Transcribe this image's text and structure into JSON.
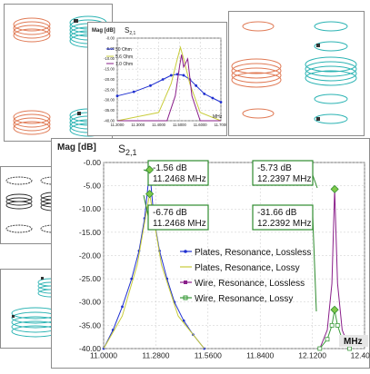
{
  "colors": {
    "coil_orange": "#e07a55",
    "coil_cyan": "#2ab3b3",
    "coil_black": "#2a2a2a",
    "series_blue": "#1f2fd0",
    "series_yellow": "#c8cc3a",
    "series_purple": "#8a1f8a",
    "series_green": "#3a9a3a",
    "callout_box": "#2e8b2e",
    "callout_marker": "#7fc94a",
    "grid": "#c8c8c8"
  },
  "large_plot": {
    "ylabel": "Mag [dB]",
    "title_main": "S",
    "title_sub": "2,1",
    "xunit": "MHz",
    "callouts": [
      {
        "line1": "-1.56 dB",
        "line2": "11.2468 MHz"
      },
      {
        "line1": "-5.73 dB",
        "line2": "12.2397 MHz"
      },
      {
        "line1": "-6.76 dB",
        "line2": "11.2468 MHz"
      },
      {
        "line1": "-31.66 dB",
        "line2": "12.2392 MHz"
      }
    ],
    "legend": [
      "Plates, Resonance, Lossless",
      "Plates, Resonance, Lossy",
      "Wire, Resonance, Lossless",
      "Wire, Resonance, Lossy"
    ]
  },
  "small_plot": {
    "ylabel": "Mag [dB]",
    "title_main": "S",
    "title_sub": "2,1",
    "xunit": "MHz",
    "legend": [
      "50 Ohm",
      "5.6 Ohm",
      "1.0 Ohm"
    ]
  },
  "chart_data": [
    {
      "type": "line",
      "xlim": [
        11.0,
        12.4
      ],
      "ylim": [
        -40,
        0
      ],
      "x_ticks": [
        "11.0000",
        "11.2800",
        "11.5600",
        "11.8400",
        "12.1200",
        "12.4000"
      ],
      "y_ticks": [
        "-0.00",
        "-5.00",
        "-10.00",
        "-15.00",
        "-20.00",
        "-25.00",
        "-30.00",
        "-35.00",
        "-40.00"
      ],
      "series": [
        {
          "name": "Plates, Resonance, Lossless",
          "color": "#1f2fd0",
          "marker": "dot",
          "x": [
            11.0,
            11.05,
            11.1,
            11.15,
            11.19,
            11.22,
            11.2468,
            11.27,
            11.3,
            11.34,
            11.38,
            11.43,
            11.48,
            11.54
          ],
          "y": [
            -40,
            -36,
            -31,
            -25,
            -19,
            -12,
            -1.56,
            -12,
            -19,
            -25,
            -30,
            -34,
            -37,
            -40
          ]
        },
        {
          "name": "Plates, Resonance, Lossy",
          "color": "#c8cc3a",
          "marker": "none",
          "x": [
            11.0,
            11.1,
            11.18,
            11.2468,
            11.31,
            11.4,
            11.54
          ],
          "y": [
            -40,
            -33,
            -22,
            -6.76,
            -22,
            -33,
            -40
          ]
        },
        {
          "name": "Wire, Resonance, Lossless",
          "color": "#8a1f8a",
          "marker": "none",
          "x": [
            12.16,
            12.2,
            12.225,
            12.2397,
            12.255,
            12.28,
            12.32
          ],
          "y": [
            -40,
            -36,
            -26,
            -5.73,
            -26,
            -36,
            -40
          ]
        },
        {
          "name": "Wire, Resonance, Lossy",
          "color": "#3a9a3a",
          "marker": "square",
          "x": [
            12.16,
            12.2,
            12.225,
            12.2392,
            12.255,
            12.28,
            12.32
          ],
          "y": [
            -40,
            -38,
            -35,
            -31.66,
            -35,
            -38,
            -40
          ]
        }
      ]
    },
    {
      "type": "line",
      "xlim": [
        11.2,
        11.7
      ],
      "ylim": [
        -40,
        0
      ],
      "x_ticks": [
        "11.2000",
        "11.3000",
        "11.4000",
        "11.5000",
        "11.6000",
        "11.7000"
      ],
      "y_ticks": [
        "-0.00",
        "-5.00",
        "-10.00",
        "-15.00",
        "-20.00",
        "-25.00",
        "-30.00",
        "-35.00",
        "-40.00"
      ],
      "series": [
        {
          "name": "50 Ohm",
          "color": "#1f2fd0",
          "marker": "dot",
          "x": [
            11.2,
            11.28,
            11.36,
            11.42,
            11.46,
            11.49,
            11.52,
            11.55,
            11.58,
            11.62,
            11.66,
            11.7
          ],
          "y": [
            -28,
            -26,
            -23,
            -20,
            -18,
            -17.5,
            -18,
            -20,
            -23,
            -27,
            -29,
            -31
          ]
        },
        {
          "name": "5.6 Ohm",
          "color": "#c8cc3a",
          "marker": "none",
          "x": [
            11.2,
            11.4,
            11.46,
            11.49,
            11.505,
            11.52,
            11.55,
            11.6,
            11.7
          ],
          "y": [
            -40,
            -36,
            -22,
            -10,
            -4.5,
            -10,
            -22,
            -36,
            -40
          ]
        },
        {
          "name": "1.0 Ohm",
          "color": "#8a1f8a",
          "marker": "none",
          "x": [
            11.2,
            11.44,
            11.48,
            11.5,
            11.51,
            11.52,
            11.54,
            11.56,
            11.6,
            11.7
          ],
          "y": [
            -40,
            -40,
            -28,
            -14,
            -8,
            -14,
            -10,
            -28,
            -40,
            -40
          ]
        }
      ]
    }
  ]
}
